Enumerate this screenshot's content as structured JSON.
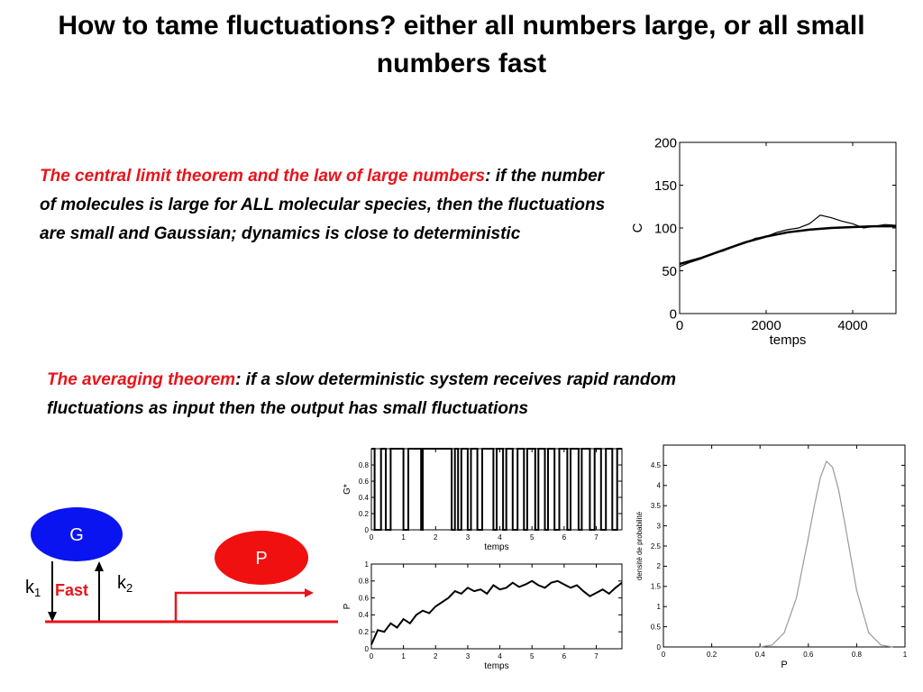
{
  "slide": {
    "title": "How to tame fluctuations? either all numbers large, or all small numbers fast",
    "para1": {
      "highlight": "The central limit theorem and the law of large numbers",
      "punct": ":",
      "body": "if the number of molecules is large for ALL molecular species, then the fluctuations are small and Gaussian; dynamics is close to deterministic"
    },
    "para2": {
      "highlight": "The averaging theorem",
      "body": ": if a slow deterministic system receives rapid random fluctuations as input then the output has small fluctuations"
    }
  },
  "diagram": {
    "node_g": "G",
    "node_p": "P",
    "k1_base": "k",
    "k1_sub": "1",
    "k2_base": "k",
    "k2_sub": "2",
    "fast_label": "Fast",
    "colors": {
      "g": "#0a14f0",
      "p": "#f01010",
      "line": "#e8141b",
      "fast": "#e8141b"
    }
  },
  "chart_data": [
    {
      "type": "line",
      "xlabel": "temps",
      "ylabel": "C",
      "xlim": [
        0,
        5000
      ],
      "ylim": [
        0,
        200
      ],
      "xticks": [
        0,
        2000,
        4000
      ],
      "yticks": [
        0,
        50,
        100,
        150,
        200
      ],
      "series": [
        {
          "x": [
            0,
            500,
            1000,
            1500,
            2000,
            2500,
            3000,
            3500,
            4000,
            4500,
            5000
          ],
          "values": [
            58,
            65,
            74,
            83,
            90,
            95,
            98,
            100,
            101,
            102,
            102
          ]
        },
        {
          "x": [
            0,
            250,
            500,
            750,
            1000,
            1250,
            1500,
            1750,
            2000,
            2250,
            2500,
            2750,
            3000,
            3250,
            3500,
            3750,
            4000,
            4250,
            4500,
            4750,
            5000
          ],
          "values": [
            55,
            60,
            64,
            70,
            73,
            78,
            82,
            88,
            90,
            95,
            98,
            100,
            105,
            115,
            112,
            108,
            105,
            100,
            102,
            104,
            103
          ]
        }
      ]
    },
    {
      "type": "line",
      "xlabel": "temps",
      "ylabel": "G*",
      "xlim": [
        0,
        7.8
      ],
      "ylim": [
        0,
        1
      ],
      "xticks": [
        0,
        1,
        2,
        3,
        4,
        5,
        6,
        7
      ],
      "xtick_labels": [
        "0",
        "1",
        "2",
        "3",
        "4",
        "5",
        "6",
        "7"
      ],
      "yticks": [
        0,
        0.2,
        0.4,
        0.6,
        0.8
      ],
      "ytick_labels": [
        "0",
        "0.2",
        "0.4",
        "0.6",
        "0.8"
      ],
      "series": [
        {
          "x": [
            0,
            0.1,
            0.1,
            0.3,
            0.3,
            0.45,
            0.45,
            0.6,
            0.6,
            1.0,
            1.0,
            1.15,
            1.15,
            1.55,
            1.55,
            1.6,
            1.6,
            2.5,
            2.5,
            2.6,
            2.6,
            2.7,
            2.7,
            2.8,
            2.8,
            3.0,
            3.0,
            3.1,
            3.1,
            3.3,
            3.3,
            3.45,
            3.45,
            3.8,
            3.8,
            3.9,
            3.9,
            4.1,
            4.1,
            4.2,
            4.2,
            4.4,
            4.4,
            4.55,
            4.55,
            4.75,
            4.75,
            4.85,
            4.85,
            5.1,
            5.1,
            5.2,
            5.2,
            5.4,
            5.4,
            5.5,
            5.5,
            5.7,
            5.7,
            5.85,
            5.85,
            6.1,
            6.1,
            6.2,
            6.2,
            6.45,
            6.45,
            6.55,
            6.55,
            6.8,
            6.8,
            6.95,
            6.95,
            7.15,
            7.15,
            7.3,
            7.3,
            7.5,
            7.5,
            7.65,
            7.65,
            7.8
          ],
          "values": [
            1,
            1,
            0,
            0,
            1,
            1,
            0,
            0,
            1,
            1,
            0,
            0,
            1,
            1,
            0,
            0,
            1,
            1,
            0,
            0,
            1,
            1,
            0,
            0,
            1,
            1,
            0,
            0,
            1,
            1,
            0,
            0,
            1,
            1,
            0,
            0,
            1,
            1,
            0,
            0,
            1,
            1,
            0,
            0,
            1,
            1,
            0,
            0,
            1,
            1,
            0,
            0,
            1,
            1,
            0,
            0,
            1,
            1,
            0,
            0,
            1,
            1,
            0,
            0,
            1,
            1,
            0,
            0,
            1,
            1,
            0,
            0,
            1,
            1,
            0,
            0,
            1,
            1,
            0,
            0,
            1,
            1
          ]
        }
      ]
    },
    {
      "type": "line",
      "xlabel": "temps",
      "ylabel": "P",
      "xlim": [
        0,
        7.8
      ],
      "ylim": [
        0,
        1
      ],
      "xticks": [
        0,
        1,
        2,
        3,
        4,
        5,
        6,
        7
      ],
      "xtick_labels": [
        "0",
        "1",
        "2",
        "3",
        "4",
        "5",
        "6",
        "7"
      ],
      "yticks": [
        0,
        0.2,
        0.4,
        0.6,
        0.8,
        1
      ],
      "ytick_labels": [
        "0",
        "0.2",
        "0.4",
        "0.6",
        "0.8",
        "1"
      ],
      "series": [
        {
          "x": [
            0,
            0.2,
            0.4,
            0.6,
            0.8,
            1.0,
            1.2,
            1.4,
            1.6,
            1.8,
            2.0,
            2.2,
            2.4,
            2.6,
            2.8,
            3.0,
            3.2,
            3.4,
            3.6,
            3.8,
            4.0,
            4.2,
            4.4,
            4.6,
            4.8,
            5.0,
            5.2,
            5.4,
            5.6,
            5.8,
            6.0,
            6.2,
            6.4,
            6.6,
            6.8,
            7.0,
            7.2,
            7.4,
            7.6,
            7.8
          ],
          "values": [
            0.05,
            0.22,
            0.2,
            0.3,
            0.25,
            0.35,
            0.3,
            0.4,
            0.45,
            0.42,
            0.5,
            0.55,
            0.6,
            0.68,
            0.65,
            0.72,
            0.68,
            0.7,
            0.65,
            0.75,
            0.7,
            0.72,
            0.78,
            0.73,
            0.76,
            0.8,
            0.75,
            0.72,
            0.78,
            0.8,
            0.76,
            0.72,
            0.75,
            0.68,
            0.62,
            0.66,
            0.7,
            0.65,
            0.72,
            0.78
          ]
        }
      ]
    },
    {
      "type": "line",
      "xlabel": "P",
      "ylabel": "densité de probabilité",
      "xlim": [
        0,
        1
      ],
      "ylim": [
        0,
        5
      ],
      "xticks": [
        0,
        0.2,
        0.4,
        0.6,
        0.8,
        1
      ],
      "xtick_labels": [
        "0",
        "0.2",
        "0.4",
        "0.6",
        "0.8",
        "1"
      ],
      "yticks": [
        0,
        0.5,
        1,
        1.5,
        2,
        2.5,
        3,
        3.5,
        4,
        4.5
      ],
      "ytick_labels": [
        "0",
        "0.5",
        "1",
        "1.5",
        "2",
        "2.5",
        "3",
        "3.5",
        "4",
        "4.5"
      ],
      "series": [
        {
          "x": [
            0.4,
            0.45,
            0.5,
            0.55,
            0.6,
            0.625,
            0.65,
            0.675,
            0.7,
            0.725,
            0.75,
            0.8,
            0.85,
            0.9,
            0.95
          ],
          "values": [
            0,
            0.05,
            0.35,
            1.2,
            2.7,
            3.5,
            4.2,
            4.6,
            4.45,
            3.9,
            3.1,
            1.4,
            0.35,
            0.05,
            0
          ]
        }
      ]
    }
  ]
}
